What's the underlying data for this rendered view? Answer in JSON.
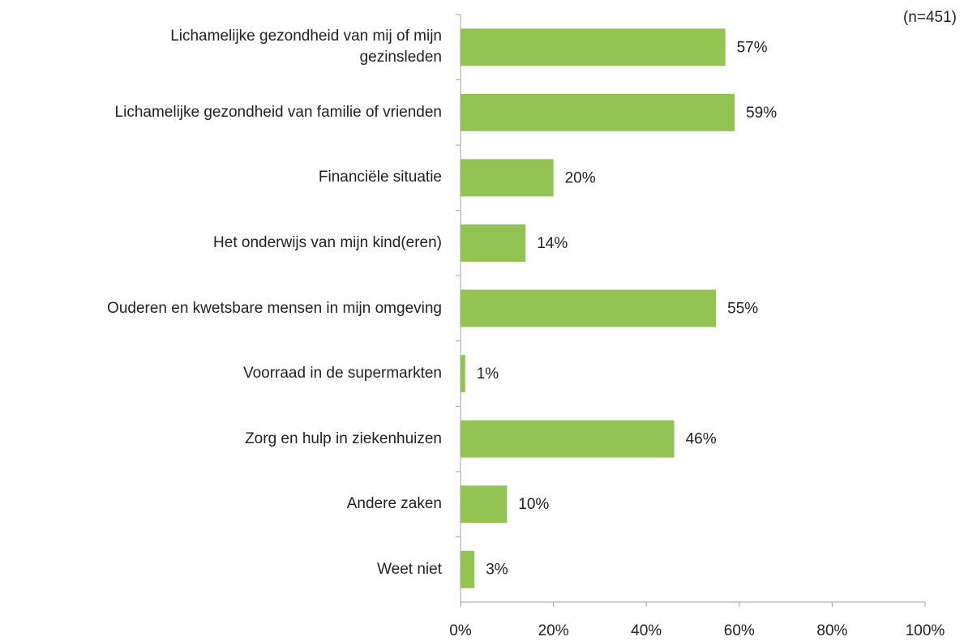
{
  "chart_data": {
    "type": "hbar",
    "annotation": "(n=451)",
    "categories": [
      "Lichamelijke gezondheid van mij of mijn\ngezinsleden",
      "Lichamelijke gezondheid van familie of vrienden",
      "Financiële situatie",
      "Het onderwijs van mijn kind(eren)",
      "Ouderen en kwetsbare mensen in mijn omgeving",
      "Voorraad in de supermarkten",
      "Zorg en hulp in ziekenhuizen",
      "Andere zaken",
      "Weet niet"
    ],
    "values": [
      57,
      59,
      20,
      14,
      55,
      1,
      46,
      10,
      3
    ],
    "value_labels": [
      "57%",
      "59%",
      "20%",
      "14%",
      "55%",
      "1%",
      "46%",
      "10%",
      "3%"
    ],
    "color": "#92c353",
    "xlim": [
      0,
      100
    ],
    "xticks": [
      {
        "value": 0,
        "label": "0%"
      },
      {
        "value": 20,
        "label": "20%"
      },
      {
        "value": 40,
        "label": "40%"
      },
      {
        "value": 60,
        "label": "60%"
      },
      {
        "value": 80,
        "label": "80%"
      },
      {
        "value": 100,
        "label": "100%"
      }
    ]
  }
}
